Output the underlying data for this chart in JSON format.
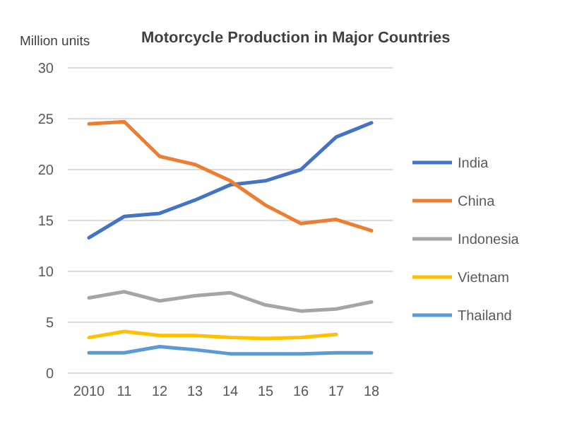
{
  "chart_data": {
    "type": "line",
    "title": "Motorcycle Production in Major Countries",
    "ylabel": "Million units",
    "categories": [
      "2010",
      "11",
      "12",
      "13",
      "14",
      "15",
      "16",
      "17",
      "18"
    ],
    "series": [
      {
        "name": "India",
        "color": "#4472c4",
        "values": [
          13.3,
          15.4,
          15.7,
          17.0,
          18.5,
          18.9,
          20.0,
          23.2,
          24.6
        ]
      },
      {
        "name": "China",
        "color": "#ed7d31",
        "values": [
          24.5,
          24.7,
          21.3,
          20.5,
          18.9,
          16.5,
          14.7,
          15.1,
          14.0
        ]
      },
      {
        "name": "Indonesia",
        "color": "#a5a5a5",
        "values": [
          7.4,
          8.0,
          7.1,
          7.6,
          7.9,
          6.7,
          6.1,
          6.3,
          7.0
        ]
      },
      {
        "name": "Vietnam",
        "color": "#ffc000",
        "values": [
          3.5,
          4.1,
          3.7,
          3.7,
          3.5,
          3.4,
          3.5,
          3.8,
          null
        ]
      },
      {
        "name": "Thailand",
        "color": "#5b9bd5",
        "values": [
          2.0,
          2.0,
          2.6,
          2.3,
          1.9,
          1.9,
          1.9,
          2.0,
          2.0
        ]
      }
    ],
    "ylim": [
      0,
      30
    ],
    "yticks": [
      0,
      5,
      10,
      15,
      20,
      25,
      30
    ],
    "grid": "y",
    "legend": "right",
    "marker": "none",
    "line_style": "solid"
  }
}
